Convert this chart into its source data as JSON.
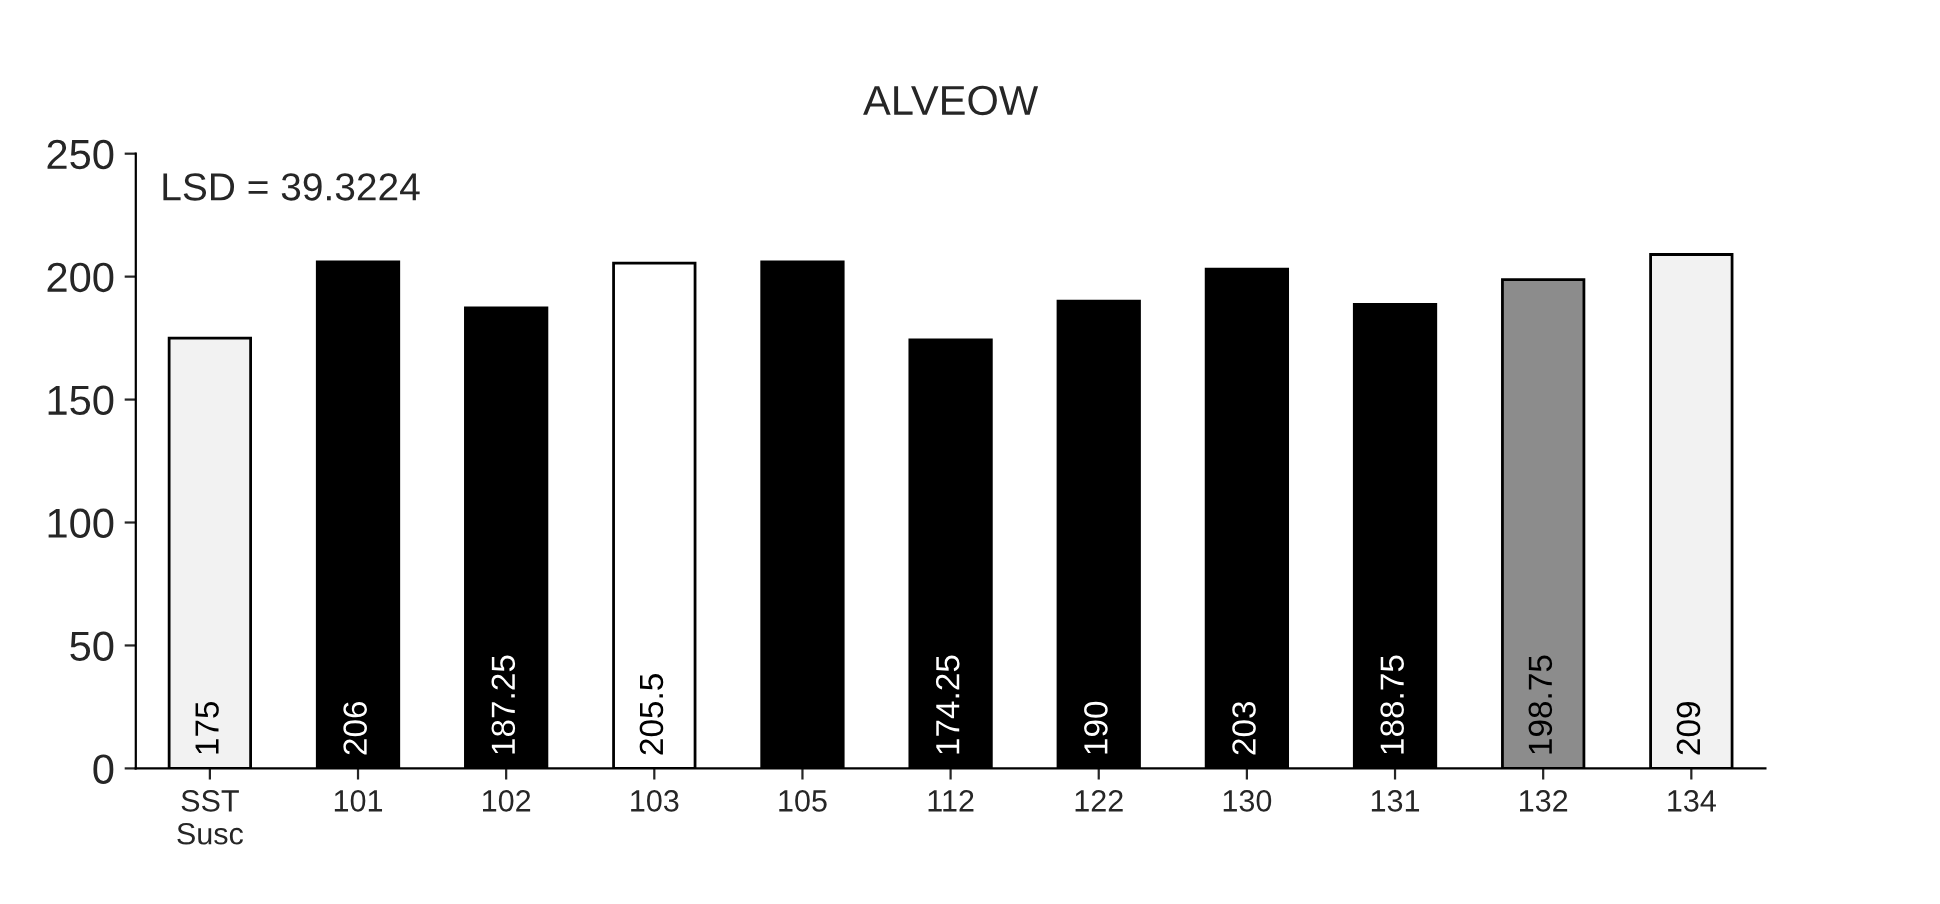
{
  "chart_data": {
    "type": "bar",
    "title": "ALVEOW",
    "categories": [
      "SST\nSusc",
      "101",
      "102",
      "103",
      "105",
      "112",
      "122",
      "130",
      "131",
      "132",
      "134"
    ],
    "values": [
      175,
      206,
      187.25,
      205.5,
      206,
      174.25,
      190,
      203,
      188.75,
      198.75,
      209
    ],
    "value_labels": [
      "175",
      "206",
      "187.25",
      "205.5",
      null,
      "174.25",
      "190",
      "203",
      "188.75",
      "198.75",
      "209"
    ],
    "colors": [
      "#f2f2f2",
      "#000000",
      "#000000",
      "#ffffff",
      "#000000",
      "#000000",
      "#000000",
      "#000000",
      "#000000",
      "#8c8c8c",
      "#f2f2f2"
    ],
    "ylim": [
      0,
      250
    ],
    "yticks": [
      0,
      50,
      100,
      150,
      200,
      250
    ],
    "annotations": [
      "LSD = 39.3224"
    ],
    "grid": false,
    "legend": false
  }
}
